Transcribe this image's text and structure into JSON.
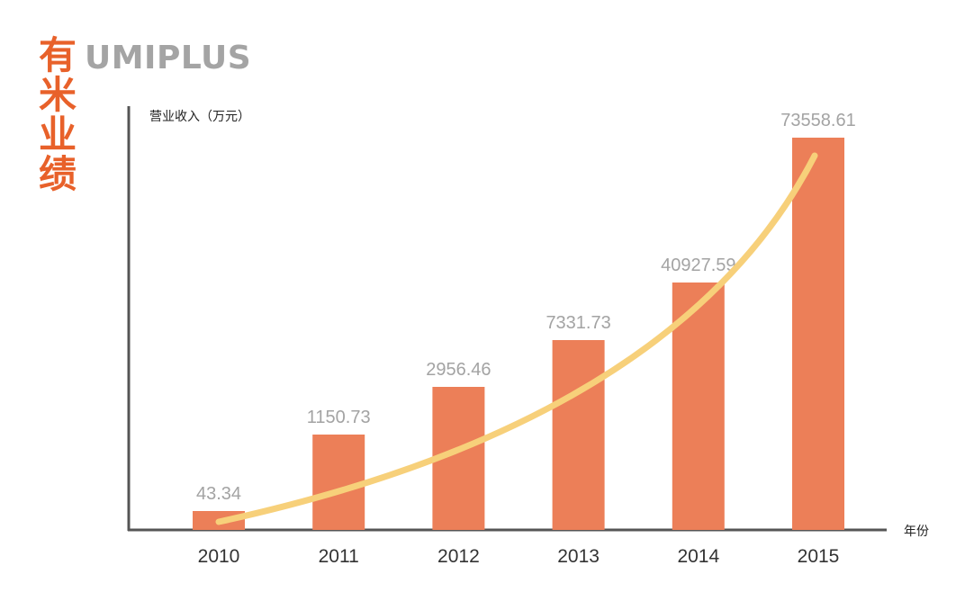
{
  "header": {
    "title_zh": [
      "有",
      "米",
      "业",
      "绩"
    ],
    "brand": "UMIPLUS"
  },
  "chart_data": {
    "type": "bar",
    "categories": [
      "2010",
      "2011",
      "2012",
      "2013",
      "2014",
      "2015"
    ],
    "values": [
      43.34,
      1150.73,
      2956.46,
      7331.73,
      40927.59,
      73558.61
    ],
    "value_labels": [
      "43.34",
      "1150.73",
      "2956.46",
      "7331.73",
      "40927.59",
      "73558.61"
    ],
    "ylabel": "营业收入（万元）",
    "xlabel": "年份",
    "grid": false,
    "overlay": "trend curve",
    "colors": {
      "bar": "#ec7f58",
      "curve": "#f7d07a",
      "axis": "#555555",
      "title": "#e8612a",
      "brand": "#a4a4a4"
    }
  }
}
